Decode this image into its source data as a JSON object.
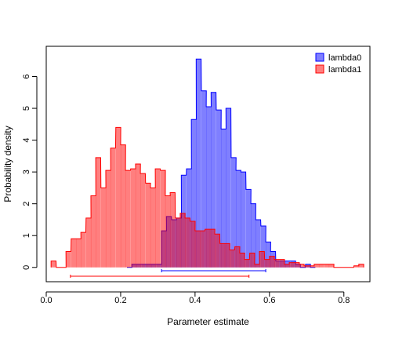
{
  "chart_data": {
    "type": "area",
    "xlabel": "Parameter estimate",
    "ylabel": "Probability density",
    "xlim": [
      0.0,
      0.87
    ],
    "ylim": [
      -0.45,
      6.95
    ],
    "xticks": [
      0.0,
      0.2,
      0.4,
      0.6,
      0.8
    ],
    "xtick_labels": [
      "0.0",
      "0.2",
      "0.4",
      "0.6",
      "0.8"
    ],
    "yticks": [
      0,
      1,
      2,
      3,
      4,
      5,
      6
    ],
    "ytick_labels": [
      "0",
      "1",
      "2",
      "3",
      "4",
      "5",
      "6"
    ],
    "legend_position": "top-right",
    "grid": false,
    "bin_width": 0.0133,
    "series": [
      {
        "name": "lambda0",
        "color": "#0000ff",
        "fill": "rgba(0,0,255,0.5)",
        "interval": [
          0.31,
          0.59
        ],
        "bins": [
          [
            0.217,
            0.0
          ],
          [
            0.23,
            0.1
          ],
          [
            0.243,
            0.1
          ],
          [
            0.257,
            0.1
          ],
          [
            0.27,
            0.1
          ],
          [
            0.283,
            0.1
          ],
          [
            0.297,
            0.1
          ],
          [
            0.31,
            1.15
          ],
          [
            0.323,
            1.6
          ],
          [
            0.337,
            1.5
          ],
          [
            0.35,
            1.55
          ],
          [
            0.363,
            2.9
          ],
          [
            0.377,
            3.1
          ],
          [
            0.39,
            4.65
          ],
          [
            0.403,
            6.55
          ],
          [
            0.417,
            5.55
          ],
          [
            0.43,
            5.05
          ],
          [
            0.443,
            5.5
          ],
          [
            0.457,
            4.95
          ],
          [
            0.47,
            4.35
          ],
          [
            0.483,
            5.0
          ],
          [
            0.497,
            3.45
          ],
          [
            0.51,
            3.05
          ],
          [
            0.523,
            3.0
          ],
          [
            0.537,
            2.45
          ],
          [
            0.55,
            2.0
          ],
          [
            0.563,
            1.5
          ],
          [
            0.577,
            1.3
          ],
          [
            0.59,
            0.8
          ],
          [
            0.603,
            0.5
          ],
          [
            0.617,
            0.2
          ],
          [
            0.63,
            0.2
          ],
          [
            0.643,
            0.2
          ],
          [
            0.657,
            0.2
          ],
          [
            0.67,
            0.1
          ],
          [
            0.683,
            0.0
          ],
          [
            0.697,
            0.1
          ],
          [
            0.71,
            0.0
          ]
        ]
      },
      {
        "name": "lambda1",
        "color": "#ff0000",
        "fill": "rgba(255,0,0,0.5)",
        "interval": [
          0.065,
          0.545
        ],
        "bins": [
          [
            0.013,
            0.2
          ],
          [
            0.027,
            0.0
          ],
          [
            0.04,
            0.0
          ],
          [
            0.053,
            0.5
          ],
          [
            0.067,
            0.9
          ],
          [
            0.08,
            0.9
          ],
          [
            0.093,
            1.1
          ],
          [
            0.107,
            1.55
          ],
          [
            0.12,
            2.25
          ],
          [
            0.133,
            3.45
          ],
          [
            0.147,
            2.5
          ],
          [
            0.16,
            3.05
          ],
          [
            0.173,
            3.75
          ],
          [
            0.187,
            4.4
          ],
          [
            0.2,
            3.85
          ],
          [
            0.213,
            3.05
          ],
          [
            0.227,
            3.1
          ],
          [
            0.24,
            3.25
          ],
          [
            0.253,
            2.95
          ],
          [
            0.267,
            2.65
          ],
          [
            0.28,
            2.5
          ],
          [
            0.293,
            3.1
          ],
          [
            0.307,
            3.05
          ],
          [
            0.32,
            2.25
          ],
          [
            0.333,
            2.35
          ],
          [
            0.347,
            1.55
          ],
          [
            0.36,
            1.7
          ],
          [
            0.373,
            1.55
          ],
          [
            0.387,
            1.45
          ],
          [
            0.4,
            1.15
          ],
          [
            0.413,
            1.15
          ],
          [
            0.427,
            1.2
          ],
          [
            0.44,
            1.2
          ],
          [
            0.453,
            1.05
          ],
          [
            0.467,
            0.75
          ],
          [
            0.48,
            0.75
          ],
          [
            0.493,
            0.55
          ],
          [
            0.507,
            0.65
          ],
          [
            0.52,
            0.45
          ],
          [
            0.533,
            0.25
          ],
          [
            0.547,
            0.45
          ],
          [
            0.56,
            0.1
          ],
          [
            0.573,
            0.5
          ],
          [
            0.587,
            0.25
          ],
          [
            0.6,
            0.35
          ],
          [
            0.613,
            0.25
          ],
          [
            0.627,
            0.25
          ],
          [
            0.64,
            0.1
          ],
          [
            0.653,
            0.15
          ],
          [
            0.667,
            0.15
          ],
          [
            0.68,
            0.1
          ],
          [
            0.693,
            0.05
          ],
          [
            0.707,
            0.05
          ],
          [
            0.72,
            0.1
          ],
          [
            0.733,
            0.1
          ],
          [
            0.747,
            0.1
          ],
          [
            0.76,
            0.1
          ],
          [
            0.773,
            0.0
          ],
          [
            0.787,
            0.0
          ],
          [
            0.8,
            0.0
          ],
          [
            0.813,
            0.0
          ],
          [
            0.827,
            0.05
          ],
          [
            0.84,
            0.1
          ]
        ]
      }
    ]
  }
}
